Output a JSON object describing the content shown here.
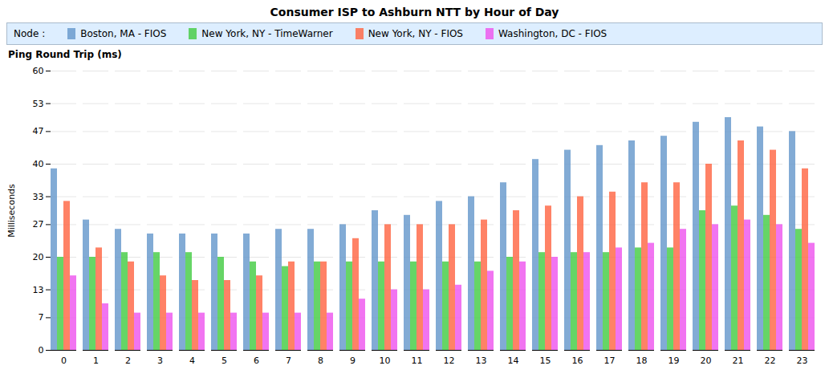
{
  "chart_data": {
    "type": "bar",
    "title": "Consumer ISP to Ashburn NTT by Hour of Day",
    "subtitle": "Ping Round Trip (ms)",
    "legend_title": "Node :",
    "legend": "top",
    "ylabel": "Milliseconds",
    "categories": [
      0,
      1,
      2,
      3,
      4,
      5,
      6,
      7,
      8,
      9,
      10,
      11,
      12,
      13,
      14,
      15,
      16,
      17,
      18,
      19,
      20,
      21,
      22,
      23
    ],
    "series": [
      {
        "name": "Boston, MA - FIOS",
        "color": "#6699CC",
        "values": [
          39,
          28,
          26,
          25,
          25,
          25,
          25,
          26,
          26,
          27,
          30,
          29,
          32,
          33,
          36,
          41,
          43,
          44,
          45,
          46,
          49,
          50,
          48,
          47
        ]
      },
      {
        "name": "New York, NY - TimeWarner",
        "color": "#44CC44",
        "values": [
          20,
          20,
          21,
          21,
          21,
          20,
          19,
          18,
          19,
          19,
          19,
          19,
          19,
          19,
          20,
          21,
          21,
          21,
          22,
          22,
          30,
          31,
          29,
          26
        ]
      },
      {
        "name": "New York, NY - FIOS",
        "color": "#FF6644",
        "values": [
          32,
          22,
          19,
          16,
          15,
          15,
          16,
          19,
          19,
          24,
          27,
          27,
          27,
          28,
          30,
          31,
          33,
          34,
          36,
          36,
          40,
          45,
          43,
          39
        ]
      },
      {
        "name": "Washington, DC - FIOS",
        "color": "#EE55EE",
        "values": [
          16,
          10,
          8,
          8,
          8,
          8,
          8,
          8,
          8,
          11,
          13,
          13,
          14,
          17,
          19,
          20,
          21,
          22,
          23,
          26,
          27,
          28,
          27,
          23
        ]
      }
    ],
    "ylim": [
      0,
      60
    ],
    "yticks": [
      0,
      7,
      13,
      20,
      27,
      33,
      40,
      47,
      53,
      60
    ],
    "grid": true
  }
}
